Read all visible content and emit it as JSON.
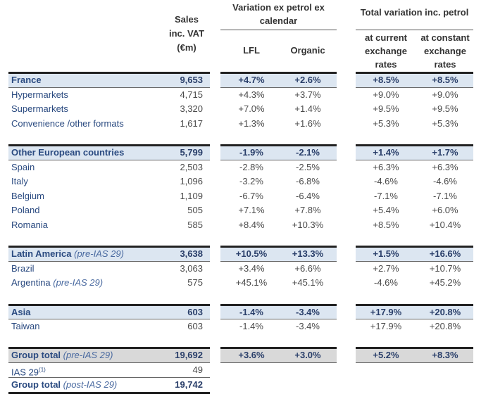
{
  "header": {
    "sales": [
      "Sales",
      "inc. VAT",
      "(€m)"
    ],
    "variation_group": [
      "Variation ex petrol ex",
      "calendar"
    ],
    "lfl": "LFL",
    "organic": "Organic",
    "total_group": "Total variation inc. petrol",
    "current": [
      "at current",
      "exchange",
      "rates"
    ],
    "constant": [
      "at constant",
      "exchange",
      "rates"
    ]
  },
  "colors": {
    "section_bg": "#dce6f1",
    "total_bg": "#d9d9d9",
    "label": "#2a4a80"
  },
  "rows": [
    {
      "type": "section",
      "label": "France",
      "note": "",
      "sales": "9,653",
      "lfl": "+4.7%",
      "organic": "+2.6%",
      "current": "+8.5%",
      "constant": "+8.5%"
    },
    {
      "type": "item",
      "label": "Hypermarkets",
      "note": "",
      "sales": "4,715",
      "lfl": "+4.3%",
      "organic": "+3.7%",
      "current": "+9.0%",
      "constant": "+9.0%"
    },
    {
      "type": "item",
      "label": "Supermarkets",
      "note": "",
      "sales": "3,320",
      "lfl": "+7.0%",
      "organic": "+1.4%",
      "current": "+9.5%",
      "constant": "+9.5%"
    },
    {
      "type": "item",
      "label": "Convenience /other formats",
      "note": "",
      "sales": "1,617",
      "lfl": "+1.3%",
      "organic": "+1.6%",
      "current": "+5.3%",
      "constant": "+5.3%"
    },
    {
      "type": "blank"
    },
    {
      "type": "section",
      "label": "Other European countries",
      "note": "",
      "sales": "5,799",
      "lfl": "-1.9%",
      "organic": "-2.1%",
      "current": "+1.4%",
      "constant": "+1.7%"
    },
    {
      "type": "item",
      "label": "Spain",
      "note": "",
      "sales": "2,503",
      "lfl": "-2.8%",
      "organic": "-2.5%",
      "current": "+6.3%",
      "constant": "+6.3%"
    },
    {
      "type": "item",
      "label": "Italy",
      "note": "",
      "sales": "1,096",
      "lfl": "-3.2%",
      "organic": "-6.8%",
      "current": "-4.6%",
      "constant": "-4.6%"
    },
    {
      "type": "item",
      "label": "Belgium",
      "note": "",
      "sales": "1,109",
      "lfl": "-6.7%",
      "organic": "-6.4%",
      "current": "-7.1%",
      "constant": "-7.1%"
    },
    {
      "type": "item",
      "label": "Poland",
      "note": "",
      "sales": "505",
      "lfl": "+7.1%",
      "organic": "+7.8%",
      "current": "+5.4%",
      "constant": "+6.0%"
    },
    {
      "type": "item",
      "label": "Romania",
      "note": "",
      "sales": "585",
      "lfl": "+8.4%",
      "organic": "+10.3%",
      "current": "+8.5%",
      "constant": "+10.4%"
    },
    {
      "type": "blank"
    },
    {
      "type": "section",
      "label": "Latin America",
      "note": "(pre-IAS 29)",
      "sales": "3,638",
      "lfl": "+10.5%",
      "organic": "+13.3%",
      "current": "+1.5%",
      "constant": "+16.6%"
    },
    {
      "type": "item",
      "label": "Brazil",
      "note": "",
      "sales": "3,063",
      "lfl": "+3.4%",
      "organic": "+6.6%",
      "current": "+2.7%",
      "constant": "+10.7%"
    },
    {
      "type": "item",
      "label": "Argentina",
      "note": "(pre-IAS 29)",
      "sales": "575",
      "lfl": "+45.1%",
      "organic": "+45.1%",
      "current": "-4.6%",
      "constant": "+45.2%"
    },
    {
      "type": "blank"
    },
    {
      "type": "section",
      "label": "Asia",
      "note": "",
      "sales": "603",
      "lfl": "-1.4%",
      "organic": "-3.4%",
      "current": "+17.9%",
      "constant": "+20.8%"
    },
    {
      "type": "item",
      "label": "Taiwan",
      "note": "",
      "sales": "603",
      "lfl": "-1.4%",
      "organic": "-3.4%",
      "current": "+17.9%",
      "constant": "+20.8%"
    },
    {
      "type": "blank"
    },
    {
      "type": "total",
      "label": "Group total",
      "note": "(pre-IAS 29)",
      "sales": "19,692",
      "lfl": "+3.6%",
      "organic": "+3.0%",
      "current": "+5.2%",
      "constant": "+8.3%"
    },
    {
      "type": "ias",
      "label": "IAS 29",
      "sup": "(1)",
      "note": "",
      "sales": "49"
    },
    {
      "type": "post",
      "label": "Group total",
      "note": "(post-IAS 29)",
      "sales": "19,742"
    }
  ]
}
